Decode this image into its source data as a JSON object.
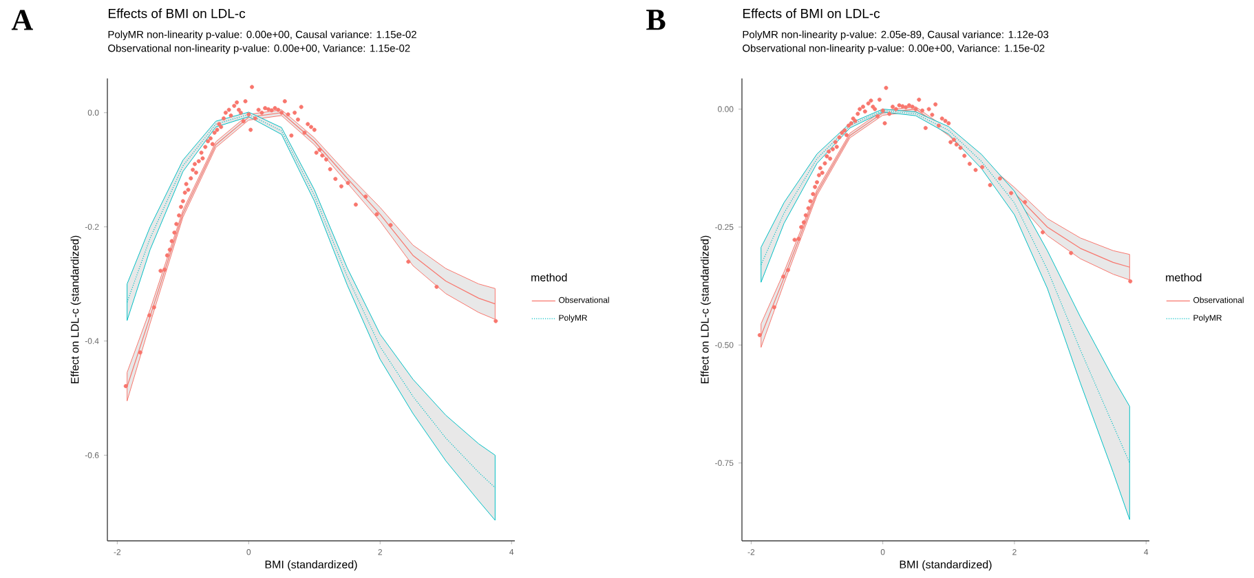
{
  "chart_data": [
    {
      "type": "line",
      "title": "Effects of BMI on LDL-c",
      "subtitle": "PolyMR non-linearity p-value: 0.00e+00, Causal variance: 1.15e-02",
      "annotations": [
        "A",
        "Observational non-linearity p-value: 0.00e+00, Variance: 1.15e-02"
      ],
      "xlabel": "BMI (standardized)",
      "ylabel": "Effect on LDL-c (standardized)",
      "legend_title": "method",
      "legend": "right",
      "xlim": [
        -2.15,
        4.05
      ],
      "ylim": [
        -0.75,
        0.06
      ],
      "xticks": [
        -2,
        0,
        2,
        4
      ],
      "yticks": [
        {
          "value": -0.6,
          "label": "-0.6"
        },
        {
          "value": -0.4,
          "label": "-0.4"
        },
        {
          "value": -0.2,
          "label": "-0.2"
        },
        {
          "value": 0,
          "label": "0.0"
        }
      ],
      "series": [
        {
          "name": "Observational",
          "color": "#f8766d",
          "line_style": "solid",
          "x": [
            -1.85,
            -1.5,
            -1,
            -0.5,
            0,
            0.5,
            1,
            1.5,
            2,
            2.5,
            3,
            3.5,
            3.75
          ],
          "values": [
            -0.48,
            -0.357,
            -0.177,
            -0.056,
            -0.008,
            0.0,
            -0.05,
            -0.115,
            -0.178,
            -0.25,
            -0.295,
            -0.325,
            -0.335
          ],
          "lower": [
            -0.505,
            -0.369,
            -0.183,
            -0.061,
            -0.013,
            -0.005,
            -0.056,
            -0.123,
            -0.19,
            -0.268,
            -0.317,
            -0.35,
            -0.362
          ],
          "upper": [
            -0.455,
            -0.345,
            -0.171,
            -0.051,
            -0.003,
            0.005,
            -0.044,
            -0.107,
            -0.166,
            -0.232,
            -0.273,
            -0.3,
            -0.308
          ]
        },
        {
          "name": "PolyMR",
          "color": "#00bfc4",
          "line_style": "dotted",
          "x": [
            -1.85,
            -1.5,
            -1,
            -0.5,
            0,
            0.5,
            1,
            1.5,
            2,
            2.5,
            3,
            3.5,
            3.75
          ],
          "values": [
            -0.332,
            -0.22,
            -0.093,
            -0.02,
            -0.003,
            -0.032,
            -0.145,
            -0.287,
            -0.41,
            -0.497,
            -0.57,
            -0.63,
            -0.657
          ],
          "lower": [
            -0.364,
            -0.24,
            -0.103,
            -0.025,
            -0.007,
            -0.038,
            -0.155,
            -0.302,
            -0.432,
            -0.527,
            -0.61,
            -0.68,
            -0.714
          ],
          "upper": [
            -0.3,
            -0.2,
            -0.083,
            -0.015,
            0.001,
            -0.026,
            -0.135,
            -0.272,
            -0.388,
            -0.467,
            -0.53,
            -0.58,
            -0.6
          ]
        },
        {
          "type": "scatter",
          "color": "#f8766d",
          "x": [
            -1.87,
            -1.65,
            -1.51,
            -1.44,
            -1.34,
            -1.28,
            -1.24,
            -1.2,
            -1.17,
            -1.13,
            -1.1,
            -1.06,
            -1.03,
            -1.0,
            -0.97,
            -0.95,
            -0.92,
            -0.88,
            -0.85,
            -0.82,
            -0.8,
            -0.76,
            -0.72,
            -0.7,
            -0.66,
            -0.62,
            -0.58,
            -0.55,
            -0.52,
            -0.48,
            -0.45,
            -0.42,
            -0.38,
            -0.35,
            -0.3,
            -0.27,
            -0.22,
            -0.18,
            -0.15,
            -0.12,
            -0.08,
            -0.05,
            0.05,
            0.0,
            0.03,
            0.1,
            0.15,
            0.2,
            0.25,
            0.3,
            0.35,
            0.4,
            0.45,
            0.5,
            0.55,
            0.6,
            0.65,
            0.7,
            0.75,
            0.8,
            0.85,
            0.9,
            0.95,
            1.0,
            1.03,
            1.08,
            1.12,
            1.18,
            1.24,
            1.32,
            1.41,
            1.51,
            1.63,
            1.78,
            1.95,
            2.16,
            2.43,
            2.86,
            3.76
          ],
          "values": [
            -0.479,
            -0.42,
            -0.355,
            -0.341,
            -0.277,
            -0.275,
            -0.25,
            -0.24,
            -0.225,
            -0.21,
            -0.195,
            -0.18,
            -0.165,
            -0.155,
            -0.14,
            -0.125,
            -0.135,
            -0.115,
            -0.1,
            -0.09,
            -0.105,
            -0.085,
            -0.07,
            -0.08,
            -0.06,
            -0.05,
            -0.045,
            -0.055,
            -0.035,
            -0.03,
            -0.02,
            -0.025,
            -0.01,
            0.0,
            0.005,
            -0.005,
            0.012,
            0.018,
            0.005,
            0.0,
            -0.015,
            0.02,
            0.045,
            -0.003,
            -0.03,
            -0.01,
            0.005,
            0.0,
            0.008,
            0.006,
            0.004,
            0.008,
            0.005,
            0.0,
            0.02,
            -0.003,
            -0.04,
            0.0,
            -0.012,
            0.01,
            -0.035,
            -0.02,
            -0.025,
            -0.03,
            -0.07,
            -0.065,
            -0.075,
            -0.082,
            -0.099,
            -0.116,
            -0.129,
            -0.123,
            -0.161,
            -0.147,
            -0.178,
            -0.197,
            -0.261,
            -0.305,
            -0.365
          ]
        }
      ]
    },
    {
      "type": "line",
      "title": "Effects of BMI on LDL-c",
      "subtitle": "PolyMR non-linearity p-value: 2.05e-89, Causal variance: 1.12e-03",
      "annotations": [
        "B",
        "Observational non-linearity p-value: 0.00e+00, Variance: 1.15e-02"
      ],
      "xlabel": "BMI (standardized)",
      "ylabel": "Effect on LDL-c (standardized)",
      "legend_title": "method",
      "legend": "right",
      "xlim": [
        -2.14,
        4.05
      ],
      "ylim": [
        -0.915,
        0.065
      ],
      "xticks": [
        -2,
        0,
        2,
        4
      ],
      "yticks": [
        {
          "value": -0.75,
          "label": "-0.75"
        },
        {
          "value": -0.5,
          "label": "-0.50"
        },
        {
          "value": -0.25,
          "label": "-0.25"
        },
        {
          "value": 0,
          "label": "0.00"
        }
      ],
      "series": [
        {
          "name": "Observational",
          "color": "#f8766d",
          "line_style": "solid",
          "x": [
            -1.85,
            -1.5,
            -1,
            -0.5,
            0,
            0.5,
            1,
            1.5,
            2,
            2.5,
            3,
            3.5,
            3.75
          ],
          "values": [
            -0.48,
            -0.357,
            -0.177,
            -0.056,
            -0.008,
            0.0,
            -0.05,
            -0.115,
            -0.178,
            -0.25,
            -0.295,
            -0.325,
            -0.335
          ],
          "lower": [
            -0.505,
            -0.369,
            -0.183,
            -0.061,
            -0.013,
            -0.005,
            -0.056,
            -0.123,
            -0.19,
            -0.268,
            -0.317,
            -0.35,
            -0.362
          ],
          "upper": [
            -0.455,
            -0.345,
            -0.171,
            -0.051,
            -0.003,
            0.005,
            -0.044,
            -0.107,
            -0.166,
            -0.232,
            -0.273,
            -0.3,
            -0.308
          ]
        },
        {
          "name": "PolyMR",
          "color": "#00bfc4",
          "line_style": "dotted",
          "x": [
            -1.85,
            -1.5,
            -1,
            -0.5,
            0,
            0.5,
            1,
            1.5,
            2,
            2.5,
            3,
            3.5,
            3.75
          ],
          "values": [
            -0.33,
            -0.22,
            -0.105,
            -0.035,
            -0.003,
            -0.01,
            -0.045,
            -0.111,
            -0.199,
            -0.34,
            -0.51,
            -0.67,
            -0.75
          ],
          "lower": [
            -0.367,
            -0.242,
            -0.115,
            -0.04,
            -0.006,
            -0.014,
            -0.053,
            -0.126,
            -0.224,
            -0.38,
            -0.58,
            -0.77,
            -0.87
          ],
          "upper": [
            -0.293,
            -0.198,
            -0.095,
            -0.03,
            0.0,
            -0.006,
            -0.037,
            -0.096,
            -0.174,
            -0.3,
            -0.44,
            -0.57,
            -0.63
          ]
        },
        {
          "type": "scatter",
          "color": "#f8766d",
          "x": [
            -1.87,
            -1.65,
            -1.51,
            -1.44,
            -1.34,
            -1.28,
            -1.24,
            -1.2,
            -1.17,
            -1.13,
            -1.1,
            -1.06,
            -1.03,
            -1.0,
            -0.97,
            -0.95,
            -0.92,
            -0.88,
            -0.85,
            -0.82,
            -0.8,
            -0.76,
            -0.72,
            -0.7,
            -0.66,
            -0.62,
            -0.58,
            -0.55,
            -0.52,
            -0.48,
            -0.45,
            -0.42,
            -0.38,
            -0.35,
            -0.3,
            -0.27,
            -0.22,
            -0.18,
            -0.15,
            -0.12,
            -0.08,
            -0.05,
            0.05,
            0.0,
            0.03,
            0.1,
            0.15,
            0.2,
            0.25,
            0.3,
            0.35,
            0.4,
            0.45,
            0.5,
            0.55,
            0.6,
            0.65,
            0.7,
            0.75,
            0.8,
            0.85,
            0.9,
            0.95,
            1.0,
            1.03,
            1.08,
            1.12,
            1.18,
            1.24,
            1.32,
            1.41,
            1.51,
            1.63,
            1.78,
            1.95,
            2.16,
            2.43,
            2.86,
            3.76
          ],
          "values": [
            -0.479,
            -0.42,
            -0.355,
            -0.341,
            -0.277,
            -0.275,
            -0.25,
            -0.24,
            -0.225,
            -0.21,
            -0.195,
            -0.18,
            -0.165,
            -0.155,
            -0.14,
            -0.125,
            -0.135,
            -0.115,
            -0.1,
            -0.09,
            -0.105,
            -0.085,
            -0.07,
            -0.08,
            -0.06,
            -0.05,
            -0.045,
            -0.055,
            -0.035,
            -0.03,
            -0.02,
            -0.025,
            -0.01,
            0.0,
            0.005,
            -0.005,
            0.012,
            0.018,
            0.005,
            0.0,
            -0.015,
            0.02,
            0.045,
            -0.003,
            -0.03,
            -0.01,
            0.005,
            0.0,
            0.008,
            0.006,
            0.004,
            0.008,
            0.005,
            0.0,
            0.02,
            -0.003,
            -0.04,
            0.0,
            -0.012,
            0.01,
            -0.035,
            -0.02,
            -0.025,
            -0.03,
            -0.07,
            -0.065,
            -0.075,
            -0.082,
            -0.099,
            -0.116,
            -0.129,
            -0.123,
            -0.161,
            -0.147,
            -0.178,
            -0.197,
            -0.261,
            -0.305,
            -0.365
          ]
        }
      ]
    }
  ]
}
